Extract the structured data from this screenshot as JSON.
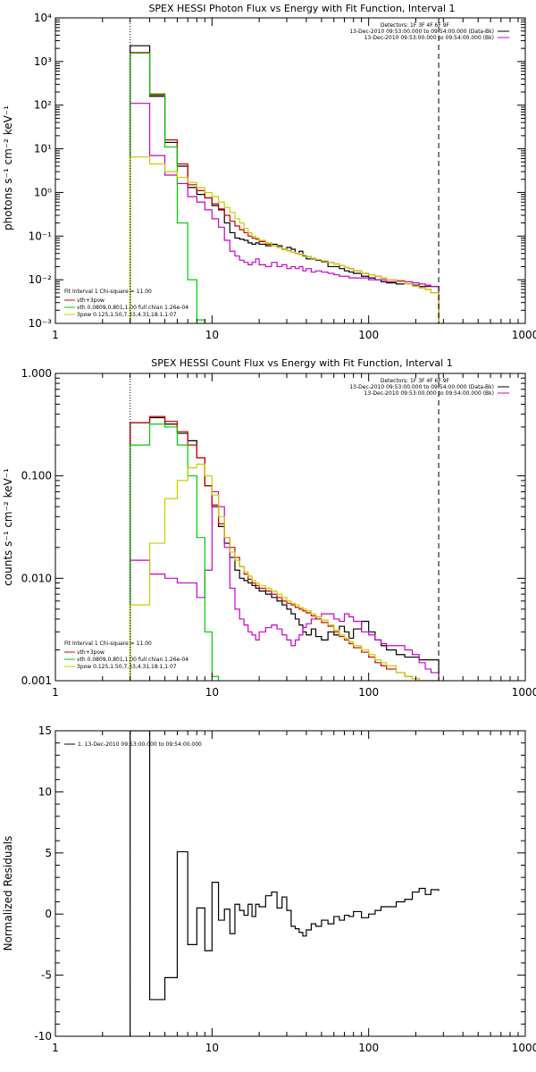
{
  "chart_data": [
    {
      "type": "line",
      "title": "SPEX HESSI Photon Flux vs Energy with Fit Function, Interval 1",
      "ylabel": "photons s⁻¹ cm⁻² keV⁻¹",
      "xlabel": "",
      "xscale": "log",
      "yscale": "log",
      "xlim": [
        1,
        1000
      ],
      "ylim": [
        0.001,
        10000
      ],
      "x_tick_labels": [
        "1",
        "10",
        "100",
        "1000"
      ],
      "y_tick_values": [
        0.001,
        0.01,
        0.1,
        1,
        10,
        100,
        1000,
        10000
      ],
      "y_tick_labels": [
        "10⁻³",
        "10⁻²",
        "10⁻¹",
        "10⁰",
        "10¹",
        "10²",
        "10³",
        "10⁴"
      ],
      "vlines": [
        {
          "x": 3.0,
          "style": "dotted"
        },
        {
          "x": 280,
          "style": "dashed"
        }
      ],
      "legend_topright": {
        "lines": [
          "Detectors: 1F 3F 4F 6F 9F",
          "13-Dec-2010 09:53:00.000 to 09:54:00.000 (Data-Bk)",
          "13-Dec-2010 09:53:00.000 to 09:54:00.000 (Bk)"
        ],
        "colors": [
          "#000000",
          "#000000",
          "#cc00cc"
        ]
      },
      "legend_bottomleft": {
        "lines": [
          "Fit Interval 1    Chi-square = 11.00",
          "vth+3pow",
          "vth 0.0809,0.801,1.00  full chian 1.26e-04",
          "3pow 0.125,1.50,7.33,4.31,18.1,1.07"
        ],
        "colors": [
          "#000000",
          "#cc0000",
          "#00cc00",
          "#cccc00"
        ]
      },
      "bin_edges": [
        3,
        4,
        5,
        6,
        7,
        8,
        9,
        10,
        11,
        12,
        13,
        14,
        15,
        16,
        17,
        18,
        19,
        20,
        22,
        24,
        26,
        28,
        30,
        32,
        34,
        36,
        38,
        40,
        43,
        46,
        50,
        55,
        60,
        65,
        70,
        75,
        80,
        90,
        100,
        110,
        120,
        130,
        150,
        170,
        190,
        210,
        230,
        250,
        280
      ],
      "series": [
        {
          "name": "Data-Bk",
          "color": "#000000",
          "values": [
            2300,
            160,
            14,
            4,
            1.3,
            0.9,
            0.75,
            0.5,
            0.4,
            0.2,
            0.12,
            0.09,
            0.085,
            0.08,
            0.07,
            0.065,
            0.07,
            0.065,
            0.06,
            0.065,
            0.06,
            0.05,
            0.055,
            0.05,
            0.04,
            0.045,
            0.035,
            0.03,
            0.03,
            0.028,
            0.026,
            0.02,
            0.02,
            0.018,
            0.016,
            0.015,
            0.014,
            0.012,
            0.011,
            0.01,
            0.009,
            0.0085,
            0.008,
            0.008,
            0.0075,
            0.007,
            0.007,
            0.007
          ]
        },
        {
          "name": "Bk",
          "color": "#cc00cc",
          "values": [
            110,
            7,
            2.5,
            1.6,
            0.8,
            0.6,
            0.4,
            0.25,
            0.16,
            0.08,
            0.045,
            0.035,
            0.028,
            0.025,
            0.022,
            0.025,
            0.03,
            0.022,
            0.02,
            0.025,
            0.02,
            0.022,
            0.018,
            0.02,
            0.018,
            0.02,
            0.016,
            0.018,
            0.015,
            0.016,
            0.015,
            0.014,
            0.013,
            0.012,
            0.012,
            0.011,
            0.011,
            0.011,
            0.01,
            0.01,
            0.01,
            0.009,
            0.0095,
            0.009,
            0.0085,
            0.008,
            0.0075,
            0.007
          ]
        },
        {
          "name": "vth+3pow",
          "color": "#cc0000",
          "values": [
            1600,
            180,
            16,
            4.5,
            1.5,
            1.1,
            0.75,
            0.55,
            0.42,
            0.3,
            0.22,
            0.17,
            0.14,
            0.12,
            0.1,
            0.09,
            0.085,
            0.075,
            0.065,
            0.06,
            0.055,
            0.05,
            0.046,
            0.043,
            0.04,
            0.038,
            0.036,
            0.034,
            0.031,
            0.029,
            0.027,
            0.025,
            0.023,
            0.021,
            0.019,
            0.018,
            0.016,
            0.014,
            0.013,
            0.012,
            0.011,
            0.01,
            0.009,
            0.008,
            0.0072,
            0.0065,
            0.006,
            0.005
          ]
        },
        {
          "name": "vth",
          "color": "#00cc00",
          "values": [
            1550,
            170,
            11,
            0.2,
            0.01,
            0.0012
          ]
        },
        {
          "name": "3pow",
          "color": "#cccc00",
          "values": [
            6.5,
            4.5,
            3,
            2.2,
            1.7,
            1.3,
            1,
            0.8,
            0.6,
            0.45,
            0.35,
            0.25,
            0.2,
            0.15,
            0.12,
            0.1,
            0.09,
            0.08,
            0.07,
            0.06,
            0.055,
            0.05,
            0.046,
            0.043,
            0.04,
            0.038,
            0.036,
            0.034,
            0.031,
            0.029,
            0.027,
            0.025,
            0.023,
            0.021,
            0.019,
            0.018,
            0.016,
            0.014,
            0.013,
            0.012,
            0.011,
            0.01,
            0.009,
            0.008,
            0.0072,
            0.0065,
            0.006,
            0.005
          ]
        }
      ]
    },
    {
      "type": "line",
      "title": "SPEX HESSI Count Flux vs Energy with Fit Function, Interval 1",
      "ylabel": "counts s⁻¹ cm⁻² keV⁻¹",
      "xlabel": "",
      "xscale": "log",
      "yscale": "log",
      "xlim": [
        1,
        1000
      ],
      "ylim": [
        0.001,
        1
      ],
      "x_tick_labels": [
        "1",
        "10",
        "100",
        "1000"
      ],
      "y_tick_values": [
        0.001,
        0.01,
        0.1,
        1
      ],
      "y_tick_labels": [
        "0.001",
        "0.010",
        "0.100",
        "1.000"
      ],
      "vlines": [
        {
          "x": 3.0,
          "style": "dotted"
        },
        {
          "x": 280,
          "style": "dashed"
        }
      ],
      "legend_topright": {
        "lines": [
          "Detectors: 1F 3F 4F 6F 9F",
          "13-Dec-2010 09:53:00.000 to 09:54:00.000 (Data-Bk)",
          "13-Dec-2010 09:53:00.000 to 09:54:00.000 (Bk)"
        ],
        "colors": [
          "#000000",
          "#000000",
          "#cc00cc"
        ]
      },
      "legend_bottomleft": {
        "lines": [
          "Fit Interval 1    Chi-square = 11.00",
          "vth+3pow",
          "vth 0.0809,0.801,1.00  full chian 1.26e-04",
          "3pow 0.125,1.50,7.33,4.31,18.1,1.07"
        ],
        "colors": [
          "#000000",
          "#cc0000",
          "#00cc00",
          "#cccc00"
        ]
      },
      "bin_edges": [
        3,
        4,
        5,
        6,
        7,
        8,
        9,
        10,
        11,
        12,
        13,
        14,
        15,
        16,
        17,
        18,
        19,
        20,
        22,
        24,
        26,
        28,
        30,
        32,
        34,
        36,
        38,
        40,
        43,
        46,
        50,
        55,
        60,
        65,
        70,
        75,
        80,
        90,
        100,
        110,
        120,
        130,
        150,
        170,
        190,
        210,
        230,
        250,
        280
      ],
      "series": [
        {
          "name": "Data-Bk",
          "color": "#000000",
          "values": [
            0.33,
            0.37,
            0.32,
            0.26,
            0.22,
            0.15,
            0.08,
            0.05,
            0.032,
            0.022,
            0.016,
            0.012,
            0.01,
            0.0095,
            0.009,
            0.0085,
            0.008,
            0.0075,
            0.007,
            0.0065,
            0.006,
            0.0055,
            0.005,
            0.0045,
            0.004,
            0.0035,
            0.003,
            0.0028,
            0.0032,
            0.0027,
            0.0025,
            0.003,
            0.0028,
            0.0034,
            0.003,
            0.0026,
            0.0032,
            0.0038,
            0.003,
            0.0025,
            0.0022,
            0.002,
            0.0018,
            0.0017,
            0.0017,
            0.0016,
            0.0016,
            0.0016
          ]
        },
        {
          "name": "Bk",
          "color": "#cc00cc",
          "values": [
            0.015,
            0.011,
            0.01,
            0.009,
            0.009,
            0.0065,
            0.012,
            0.07,
            0.05,
            0.02,
            0.008,
            0.005,
            0.004,
            0.0035,
            0.003,
            0.0028,
            0.0025,
            0.003,
            0.0033,
            0.0035,
            0.0032,
            0.0028,
            0.0025,
            0.0022,
            0.0025,
            0.0028,
            0.0033,
            0.0036,
            0.004,
            0.0042,
            0.0045,
            0.0045,
            0.004,
            0.0038,
            0.0045,
            0.0042,
            0.0038,
            0.003,
            0.0028,
            0.0025,
            0.0023,
            0.0022,
            0.0022,
            0.002,
            0.0018,
            0.0015,
            0.0013,
            0.0012
          ]
        },
        {
          "name": "vth+3pow",
          "color": "#cc0000",
          "values": [
            0.33,
            0.38,
            0.34,
            0.27,
            0.2,
            0.15,
            0.08,
            0.052,
            0.034,
            0.025,
            0.02,
            0.016,
            0.013,
            0.011,
            0.0098,
            0.009,
            0.0085,
            0.008,
            0.0075,
            0.007,
            0.0065,
            0.006,
            0.0057,
            0.0055,
            0.0052,
            0.005,
            0.0048,
            0.0046,
            0.0043,
            0.004,
            0.0037,
            0.0034,
            0.003,
            0.0027,
            0.0025,
            0.0023,
            0.0021,
            0.0019,
            0.0017,
            0.0015,
            0.0014,
            0.0013,
            0.0012,
            0.0011,
            0.00105,
            0.001,
            0.001,
            0.001
          ]
        },
        {
          "name": "vth",
          "color": "#00cc00",
          "values": [
            0.2,
            0.32,
            0.3,
            0.2,
            0.1,
            0.025,
            0.003,
            0.0011
          ]
        },
        {
          "name": "3pow",
          "color": "#cccc00",
          "values": [
            0.0055,
            0.022,
            0.06,
            0.09,
            0.12,
            0.13,
            0.1,
            0.065,
            0.04,
            0.025,
            0.018,
            0.015,
            0.013,
            0.0115,
            0.0105,
            0.0095,
            0.009,
            0.0085,
            0.008,
            0.0075,
            0.007,
            0.0065,
            0.006,
            0.0057,
            0.0055,
            0.0052,
            0.005,
            0.0048,
            0.0045,
            0.0042,
            0.0039,
            0.0035,
            0.0031,
            0.0028,
            0.0026,
            0.0024,
            0.0022,
            0.002,
            0.0018,
            0.0016,
            0.0015,
            0.0014,
            0.0012,
            0.0011,
            0.00105,
            0.001,
            0.001,
            0.001
          ]
        }
      ]
    },
    {
      "type": "line",
      "title": "",
      "ylabel": "Normalized Residuals",
      "xlabel": "",
      "xscale": "log",
      "yscale": "linear",
      "xlim": [
        1,
        1000
      ],
      "ylim": [
        -10,
        15
      ],
      "x_tick_labels": [
        "1",
        "10",
        "100",
        "1000"
      ],
      "y_tick_values": [
        -10,
        -5,
        0,
        5,
        10,
        15
      ],
      "y_tick_labels": [
        "-10",
        "-5",
        "0",
        "5",
        "10",
        "15"
      ],
      "legend_topleft": {
        "lines": [
          "1. 13-Dec-2010 09:53:00.000 to 09:54:00.000"
        ],
        "colors": [
          "#000000"
        ]
      },
      "bin_edges": [
        3,
        4,
        5,
        6,
        7,
        8,
        9,
        10,
        11,
        12,
        13,
        14,
        15,
        16,
        17,
        18,
        19,
        20,
        22,
        24,
        26,
        28,
        30,
        32,
        34,
        36,
        38,
        40,
        43,
        46,
        50,
        55,
        60,
        65,
        70,
        75,
        80,
        90,
        100,
        110,
        120,
        130,
        150,
        170,
        190,
        210,
        230,
        250,
        280
      ],
      "series": [
        {
          "name": "1. 13-Dec-2010 09:53:00.000 to 09:54:00.000",
          "color": "#000000",
          "values": [
            15,
            -7,
            -5.2,
            5.1,
            -2.5,
            0.5,
            -3,
            2.6,
            -0.5,
            0.4,
            -1.6,
            0.8,
            0.3,
            -0.1,
            0.8,
            -0.2,
            0.8,
            0.6,
            1.5,
            1.8,
            0.5,
            1.4,
            0.3,
            -1.0,
            -1.2,
            -1.5,
            -1.8,
            -1.3,
            -0.8,
            -1.0,
            -0.5,
            -0.8,
            -0.2,
            -0.5,
            -0.1,
            -0.2,
            0.2,
            -0.3,
            0.0,
            0.3,
            0.6,
            0.6,
            1.0,
            1.2,
            1.8,
            2.1,
            1.6,
            2.0,
            1.9
          ]
        }
      ]
    }
  ]
}
